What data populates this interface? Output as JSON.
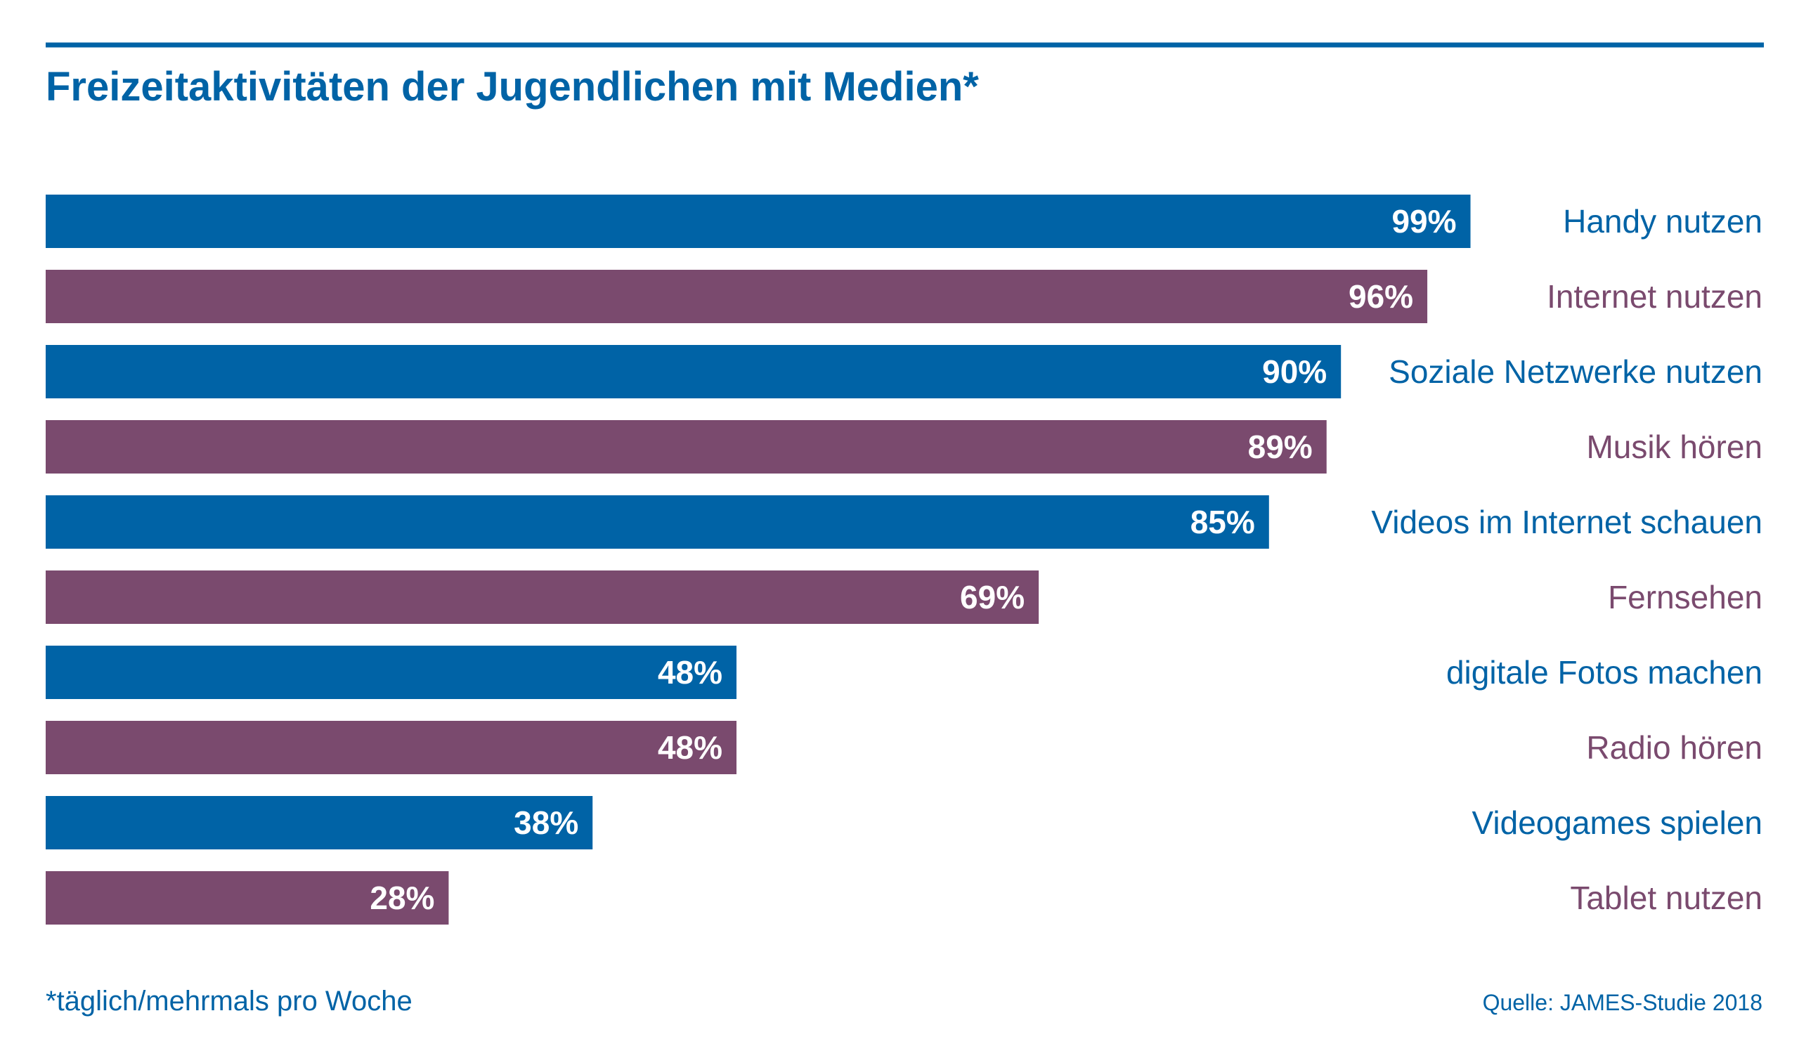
{
  "chart_data": {
    "type": "bar",
    "orientation": "horizontal",
    "title": "Freizeitaktivitäten der Jugendlichen mit Medien*",
    "footnote": "*täglich/mehrmals pro Woche",
    "source": "Quelle: JAMES-Studie 2018",
    "categories": [
      "Handy nutzen",
      "Internet nutzen",
      "Soziale Netzwerke nutzen",
      "Musik hören",
      "Videos im Internet schauen",
      "Fernsehen",
      "digitale Fotos machen",
      "Radio hören",
      "Videogames spielen",
      "Tablet nutzen"
    ],
    "values": [
      99,
      96,
      90,
      89,
      85,
      69,
      48,
      48,
      38,
      28
    ],
    "value_labels": [
      "99%",
      "96%",
      "90%",
      "89%",
      "85%",
      "69%",
      "48%",
      "48%",
      "38%",
      "28%"
    ],
    "unit": "%",
    "xlim": [
      0,
      100
    ],
    "grid": false,
    "legend": "none"
  },
  "colors": {
    "blue": "#0063a6",
    "purple": "#7a4a6e",
    "text_white": "#ffffff",
    "rule": "#0063a6",
    "footnote": "#0063a6",
    "source": "#0063a6"
  },
  "bar_color_sequence": [
    "blue",
    "purple",
    "blue",
    "purple",
    "blue",
    "purple",
    "blue",
    "purple",
    "blue",
    "purple"
  ]
}
